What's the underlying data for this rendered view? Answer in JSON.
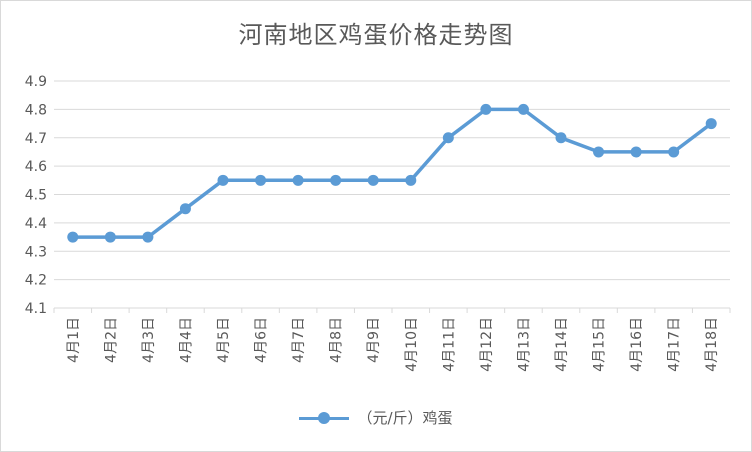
{
  "chart_data": {
    "type": "line",
    "title": "河南地区鸡蛋价格走势图",
    "categories": [
      "4月1日",
      "4月2日",
      "4月3日",
      "4月4日",
      "4月5日",
      "4月6日",
      "4月7日",
      "4月8日",
      "4月9日",
      "4月10日",
      "4月11日",
      "4月12日",
      "4月13日",
      "4月14日",
      "4月15日",
      "4月16日",
      "4月17日",
      "4月18日"
    ],
    "series": [
      {
        "name": "（元/斤）鸡蛋",
        "values": [
          4.35,
          4.35,
          4.35,
          4.45,
          4.55,
          4.55,
          4.55,
          4.55,
          4.55,
          4.55,
          4.7,
          4.8,
          4.8,
          4.7,
          4.65,
          4.65,
          4.65,
          4.75
        ]
      }
    ],
    "ylim": [
      4.1,
      4.9
    ],
    "yticks": [
      4.1,
      4.2,
      4.3,
      4.4,
      4.5,
      4.6,
      4.7,
      4.8,
      4.9
    ],
    "xlabel": "",
    "ylabel": "",
    "grid": true,
    "legend": "bottom",
    "colors": {
      "series": "#5b9bd5",
      "grid": "#d9d9d9",
      "text": "#595959"
    }
  }
}
